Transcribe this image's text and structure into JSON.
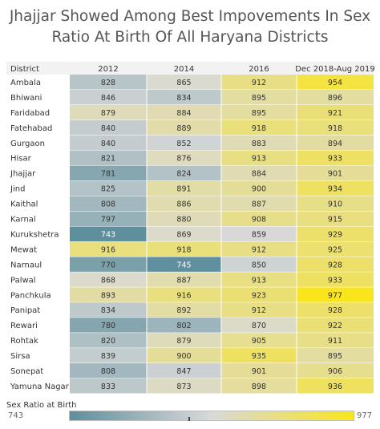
{
  "title_line1": "Jhajjar Showed Among Best Impovements In Sex",
  "title_line2": "Ratio At Birth Of All Haryana Districts",
  "chart_data": {
    "type": "heatmap",
    "row_header": "District",
    "columns": [
      "2012",
      "2014",
      "2016",
      "Dec 2018-Aug 2019"
    ],
    "rows": [
      {
        "district": "Ambala",
        "values": [
          828,
          865,
          912,
          954
        ]
      },
      {
        "district": "Bhiwani",
        "values": [
          846,
          834,
          895,
          896
        ]
      },
      {
        "district": "Faridabad",
        "values": [
          879,
          884,
          895,
          921
        ]
      },
      {
        "district": "Fatehabad",
        "values": [
          840,
          889,
          918,
          918
        ]
      },
      {
        "district": "Gurgaon",
        "values": [
          840,
          852,
          883,
          894
        ]
      },
      {
        "district": "Hisar",
        "values": [
          821,
          876,
          913,
          933
        ]
      },
      {
        "district": "Jhajjar",
        "values": [
          781,
          824,
          884,
          901
        ]
      },
      {
        "district": "Jind",
        "values": [
          825,
          891,
          900,
          934
        ]
      },
      {
        "district": "Kaithal",
        "values": [
          808,
          886,
          887,
          910
        ]
      },
      {
        "district": "Karnal",
        "values": [
          797,
          880,
          908,
          915
        ]
      },
      {
        "district": "Kurukshetra",
        "values": [
          743,
          869,
          859,
          929
        ]
      },
      {
        "district": "Mewat",
        "values": [
          916,
          918,
          912,
          925
        ]
      },
      {
        "district": "Narnaul",
        "values": [
          770,
          745,
          850,
          928
        ]
      },
      {
        "district": "Palwal",
        "values": [
          868,
          887,
          913,
          933
        ]
      },
      {
        "district": "Panchkula",
        "values": [
          893,
          916,
          923,
          977
        ]
      },
      {
        "district": "Panipat",
        "values": [
          834,
          892,
          912,
          928
        ]
      },
      {
        "district": "Rewari",
        "values": [
          780,
          802,
          870,
          922
        ]
      },
      {
        "district": "Rohtak",
        "values": [
          820,
          879,
          905,
          911
        ]
      },
      {
        "district": "Sirsa",
        "values": [
          839,
          900,
          935,
          895
        ]
      },
      {
        "district": "Sonepat",
        "values": [
          808,
          847,
          901,
          906
        ]
      },
      {
        "district": "Yamuna Nagar",
        "values": [
          833,
          873,
          898,
          936
        ]
      }
    ],
    "legend": {
      "title": "Sex Ratio at Birth",
      "min": 743,
      "max": 977,
      "colors": [
        "#5e8f9c",
        "#d9d9d9",
        "#fae51c"
      ]
    }
  }
}
